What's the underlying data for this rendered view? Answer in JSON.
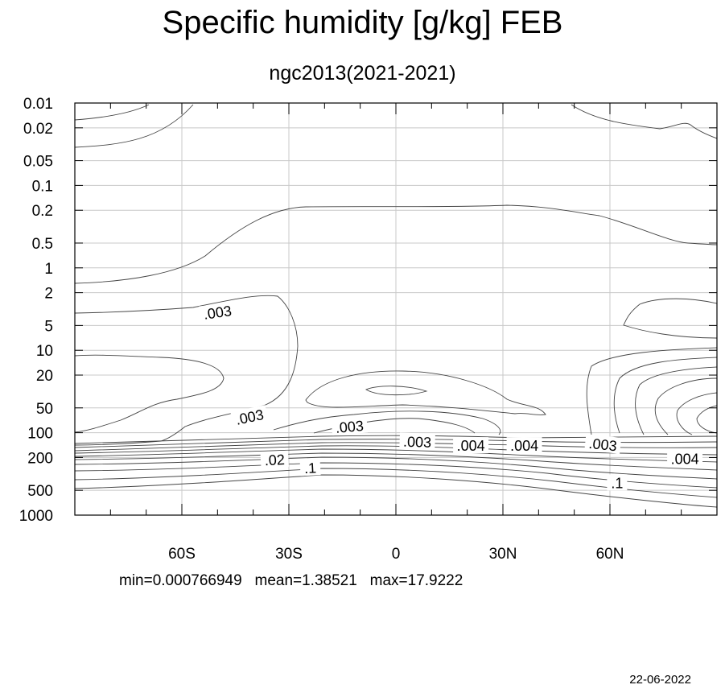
{
  "title": "Specific humidity [g/kg] FEB",
  "subtitle": "ngc2013(2021-2021)",
  "stats": "min=0.000766949   mean=1.38521   max=17.9222",
  "date": "22-06-2022",
  "chart_data": {
    "type": "contour",
    "title": "Specific humidity [g/kg] FEB",
    "subtitle": "ngc2013(2021-2021)",
    "x_range": [
      -90,
      90
    ],
    "x_ticks": [
      {
        "value": -60,
        "label": "60S"
      },
      {
        "value": -30,
        "label": "30S"
      },
      {
        "value": 0,
        "label": "0"
      },
      {
        "value": 30,
        "label": "30N"
      },
      {
        "value": 60,
        "label": "60N"
      }
    ],
    "y_scale": "log",
    "y_reversed": true,
    "y_range": [
      1000,
      0.01
    ],
    "y_ticks": [
      {
        "value": 0.01,
        "label": "0.01"
      },
      {
        "value": 0.02,
        "label": "0.02"
      },
      {
        "value": 0.05,
        "label": "0.05"
      },
      {
        "value": 0.1,
        "label": "0.1"
      },
      {
        "value": 0.2,
        "label": "0.2"
      },
      {
        "value": 0.5,
        "label": "0.5"
      },
      {
        "value": 1,
        "label": "1"
      },
      {
        "value": 2,
        "label": "2"
      },
      {
        "value": 5,
        "label": "5"
      },
      {
        "value": 10,
        "label": "10"
      },
      {
        "value": 20,
        "label": "20"
      },
      {
        "value": 50,
        "label": "50"
      },
      {
        "value": 100,
        "label": "100"
      },
      {
        "value": 200,
        "label": "200"
      },
      {
        "value": 500,
        "label": "500"
      },
      {
        "value": 1000,
        "label": "1000"
      }
    ],
    "grid": true,
    "contour_labels": [
      {
        "text": ".003",
        "x": -50,
        "p": 3.5,
        "angle": -8
      },
      {
        "text": ".003",
        "x": -41,
        "p": 65,
        "angle": -12
      },
      {
        "text": ".003",
        "x": -13,
        "p": 85,
        "angle": -5
      },
      {
        "text": ".003",
        "x": 6,
        "p": 130,
        "angle": 2
      },
      {
        "text": ".004",
        "x": 21,
        "p": 145,
        "angle": 0
      },
      {
        "text": ".004",
        "x": 36,
        "p": 145,
        "angle": 0
      },
      {
        "text": ".003",
        "x": 58,
        "p": 140,
        "angle": 6
      },
      {
        "text": ".004",
        "x": 81,
        "p": 210,
        "angle": 0
      },
      {
        "text": ".02",
        "x": -34,
        "p": 215,
        "angle": -3
      },
      {
        "text": ".1",
        "x": -24,
        "p": 270,
        "angle": -3
      },
      {
        "text": ".1",
        "x": 62,
        "p": 410,
        "angle": 0
      }
    ]
  }
}
